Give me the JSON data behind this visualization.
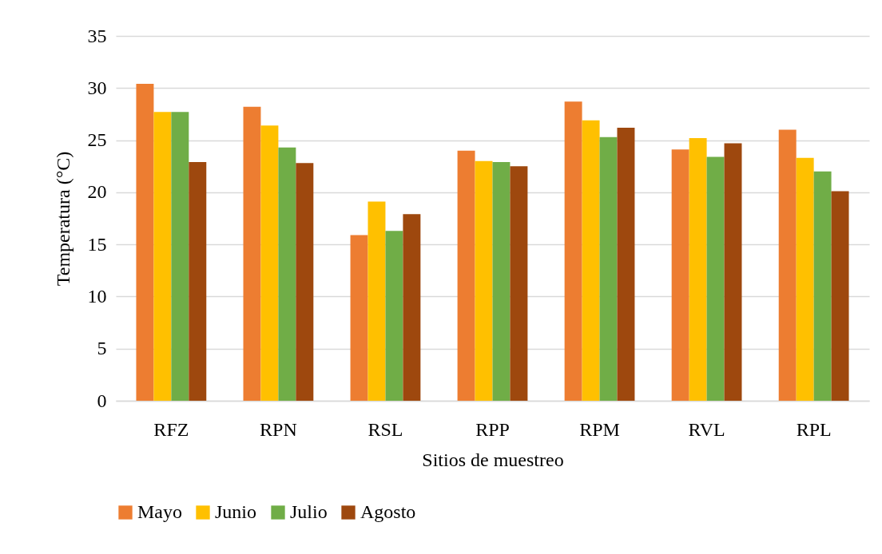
{
  "chart_data": {
    "type": "bar",
    "xlabel": "Sitios de muestreo",
    "ylabel": "Temperatura (°C)",
    "categories": [
      "RFZ",
      "RPN",
      "RSL",
      "RPP",
      "RPM",
      "RVL",
      "RPL"
    ],
    "series": [
      {
        "name": "Mayo",
        "color": "#ed7d31",
        "values": [
          30.4,
          28.2,
          15.9,
          24.0,
          28.7,
          24.1,
          26.0
        ]
      },
      {
        "name": "Junio",
        "color": "#ffc000",
        "values": [
          27.7,
          26.4,
          19.1,
          23.0,
          26.9,
          25.2,
          23.3
        ]
      },
      {
        "name": "Julio",
        "color": "#70ad47",
        "values": [
          27.7,
          24.3,
          16.3,
          22.9,
          25.3,
          23.4,
          22.0
        ]
      },
      {
        "name": "Agosto",
        "color": "#9e480e",
        "values": [
          22.9,
          22.8,
          17.9,
          22.5,
          26.2,
          24.7,
          20.1
        ]
      }
    ],
    "ylim": [
      0,
      35
    ],
    "yticks": [
      0,
      5,
      10,
      15,
      20,
      25,
      30,
      35
    ],
    "grid": "y",
    "legend": "bottom"
  }
}
